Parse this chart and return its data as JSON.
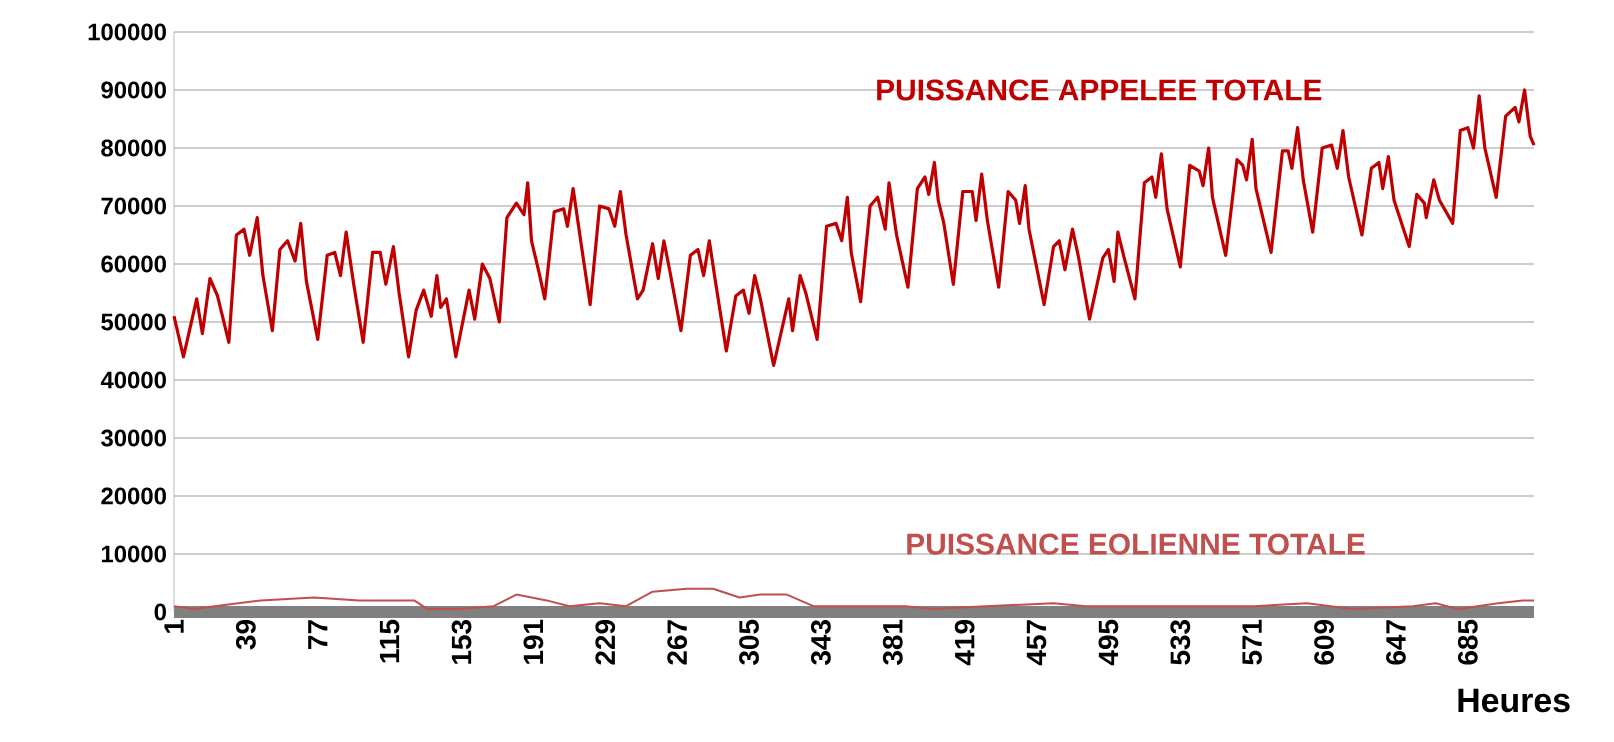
{
  "chart_data": {
    "type": "line",
    "xlabel": "Heures",
    "xlim": [
      1,
      720
    ],
    "xticks": [
      1,
      39,
      77,
      115,
      153,
      191,
      229,
      267,
      305,
      343,
      381,
      419,
      457,
      495,
      533,
      571,
      609,
      647,
      685
    ],
    "ylim": [
      0,
      100000
    ],
    "yticks": [
      0,
      10000,
      20000,
      30000,
      40000,
      50000,
      60000,
      70000,
      80000,
      90000,
      100000
    ],
    "grid": "y",
    "line_style": "solid",
    "series": [
      {
        "name": "PUISSANCE APPELEE TOTALE",
        "color": "#c00000",
        "x": [
          1,
          6,
          13,
          16,
          20,
          24,
          30,
          34,
          38,
          41,
          45,
          48,
          53,
          57,
          61,
          65,
          68,
          71,
          77,
          82,
          86,
          89,
          92,
          96,
          101,
          106,
          110,
          113,
          117,
          120,
          125,
          129,
          133,
          137,
          140,
          142,
          145,
          150,
          157,
          160,
          164,
          168,
          173,
          177,
          182,
          186,
          188,
          190,
          194,
          197,
          202,
          207,
          209,
          212,
          216,
          221,
          226,
          231,
          234,
          237,
          240,
          246,
          249,
          254,
          257,
          260,
          263,
          269,
          274,
          278,
          281,
          284,
          287,
          293,
          298,
          302,
          305,
          308,
          311,
          318,
          326,
          328,
          332,
          335,
          341,
          346,
          351,
          354,
          357,
          359,
          364,
          369,
          373,
          377,
          379,
          383,
          389,
          394,
          398,
          400,
          403,
          405,
          408,
          413,
          418,
          423,
          425,
          428,
          431,
          437,
          442,
          446,
          448,
          451,
          453,
          461,
          466,
          469,
          472,
          476,
          479,
          485,
          492,
          495,
          498,
          500,
          503,
          509,
          514,
          518,
          520,
          523,
          526,
          533,
          538,
          543,
          545,
          548,
          550,
          557,
          563,
          566,
          568,
          571,
          573,
          581,
          587,
          590,
          592,
          595,
          598,
          603,
          608,
          613,
          616,
          619,
          622,
          629,
          634,
          638,
          640,
          643,
          646,
          654,
          658,
          662,
          663,
          667,
          670,
          677,
          681,
          685,
          688,
          691,
          694,
          700,
          705,
          710,
          712,
          715,
          718,
          720
        ],
        "values": [
          51000,
          44000,
          54000,
          48000,
          57500,
          54500,
          46500,
          65000,
          66000,
          61500,
          68000,
          58000,
          48500,
          62500,
          64000,
          60500,
          67000,
          57000,
          47000,
          61500,
          62000,
          58000,
          65500,
          56500,
          46500,
          62000,
          62000,
          56500,
          63000,
          55000,
          44000,
          52000,
          55500,
          51000,
          58000,
          52500,
          54000,
          44000,
          55500,
          50500,
          60000,
          57500,
          50000,
          68000,
          70500,
          68500,
          74000,
          64000,
          58500,
          54000,
          69000,
          69500,
          66500,
          73000,
          64000,
          53000,
          70000,
          69500,
          66500,
          72500,
          65000,
          54000,
          55500,
          63500,
          57500,
          64000,
          59000,
          48500,
          61500,
          62500,
          58000,
          64000,
          57500,
          45000,
          54500,
          55500,
          51500,
          58000,
          54000,
          42500,
          54000,
          48500,
          58000,
          55000,
          47000,
          66500,
          67000,
          64000,
          71500,
          62000,
          53500,
          70000,
          71500,
          66000,
          74000,
          65000,
          56000,
          73000,
          75000,
          72000,
          77500,
          71000,
          67000,
          56500,
          72500,
          72500,
          67500,
          75500,
          67500,
          56000,
          72500,
          71000,
          67000,
          73500,
          66000,
          53000,
          63000,
          64000,
          59000,
          66000,
          61500,
          50500,
          61000,
          62500,
          57000,
          65500,
          61500,
          54000,
          74000,
          75000,
          71500,
          79000,
          69500,
          59500,
          77000,
          76000,
          73500,
          80000,
          71500,
          61500,
          78000,
          77000,
          74500,
          81500,
          73000,
          62000,
          79500,
          79500,
          76500,
          83500,
          74500,
          65500,
          80000,
          80500,
          76500,
          83000,
          75000,
          65000,
          76500,
          77500,
          73000,
          78500,
          71000,
          63000,
          72000,
          70500,
          68000,
          74500,
          71000,
          67000,
          83000,
          83500,
          80000,
          89000,
          80000,
          71500,
          85500,
          87000,
          84500,
          90000,
          82000,
          80500
        ]
      },
      {
        "name": "PUISSANCE EOLIENNE TOTALE",
        "color": "#c0504d",
        "x": [
          1,
          11,
          47,
          75,
          99,
          128,
          135,
          152,
          170,
          182,
          198,
          210,
          226,
          240,
          254,
          272,
          286,
          300,
          311,
          325,
          339,
          360,
          388,
          402,
          430,
          466,
          483,
          536,
          572,
          600,
          624,
          656,
          668,
          680,
          701,
          714,
          720
        ],
        "values": [
          1000,
          500,
          2000,
          2500,
          2000,
          2000,
          500,
          500,
          1000,
          3000,
          2000,
          1000,
          1500,
          1000,
          3500,
          4000,
          4000,
          2500,
          3000,
          3000,
          1000,
          1000,
          1000,
          500,
          1000,
          1500,
          1000,
          1000,
          1000,
          1500,
          500,
          1000,
          1500,
          500,
          1500,
          2000,
          2000
        ]
      }
    ]
  }
}
